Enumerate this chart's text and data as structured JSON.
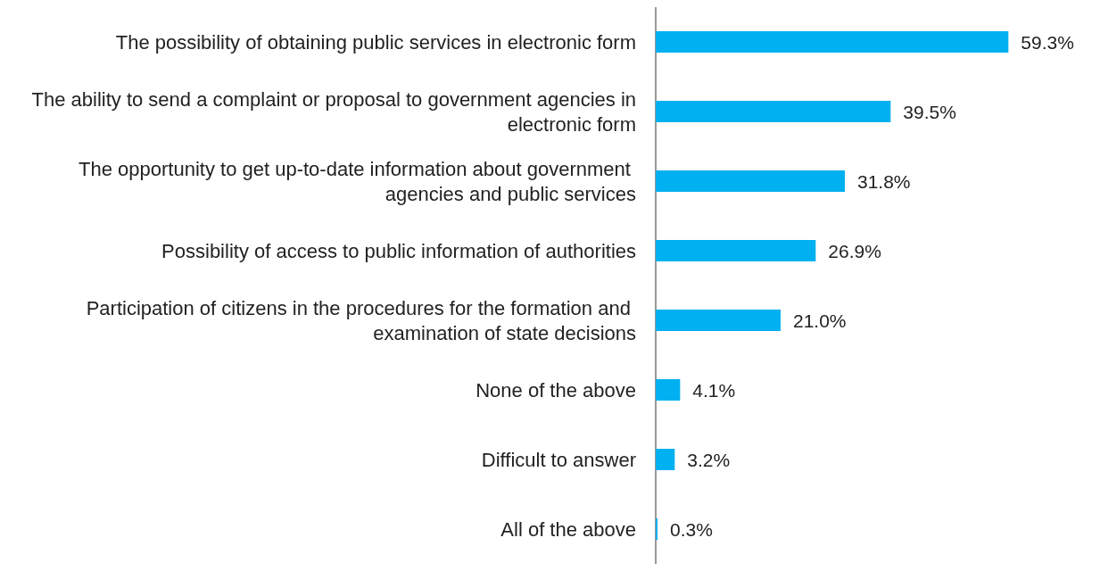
{
  "chart_data": {
    "type": "bar",
    "orientation": "horizontal",
    "categories": [
      "The possibility of obtaining public services in electronic form",
      "The ability to send a complaint or proposal to government agencies in electronic form",
      "The opportunity to get up-to-date information about government agencies and public services",
      "Possibility of access to public information of authorities",
      "Participation of citizens in the procedures for the formation and examination of state decisions",
      "None of the above",
      "Difficult to answer",
      "All of the above"
    ],
    "values": [
      59.3,
      39.5,
      31.8,
      26.9,
      21.0,
      4.1,
      3.2,
      0.3
    ],
    "value_labels": [
      "59.3%",
      "39.5%",
      "31.8%",
      "26.9%",
      "21.0%",
      "4.1%",
      "3.2%",
      "0.3%"
    ],
    "color": "#00b0f0",
    "tick_labels": "y"
  }
}
